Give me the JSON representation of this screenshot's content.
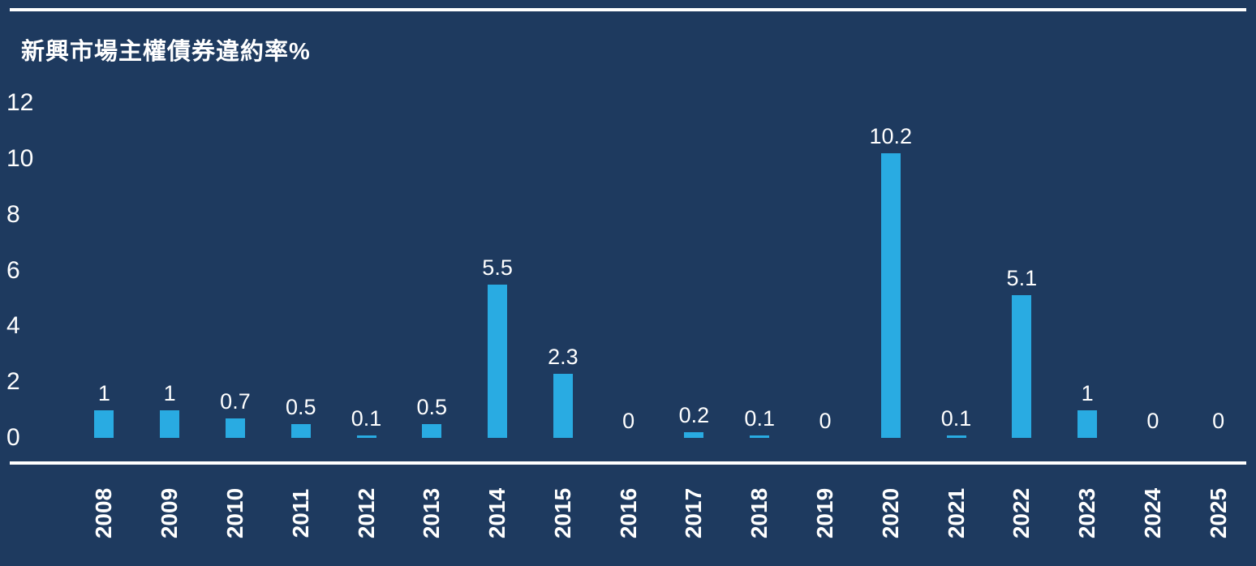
{
  "page": {
    "background_color": "#1e3a5f",
    "text_color": "#ffffff",
    "rule_color": "#ffffff"
  },
  "chart_data": {
    "type": "bar",
    "title": "新興市場主權債券違約率%",
    "categories": [
      "2008",
      "2009",
      "2010",
      "2011",
      "2012",
      "2013",
      "2014",
      "2015",
      "2016",
      "2017",
      "2018",
      "2019",
      "2020",
      "2021",
      "2022",
      "2023",
      "2024",
      "2025"
    ],
    "values": [
      1,
      1,
      0.7,
      0.5,
      0.1,
      0.5,
      5.5,
      2.3,
      0,
      0.2,
      0.1,
      0,
      10.2,
      0.1,
      5.1,
      1,
      0,
      0
    ],
    "labels": [
      "1",
      "1",
      "0.7",
      "0.5",
      "0.1",
      "0.5",
      "5.5",
      "2.3",
      "0",
      "0.2",
      "0.1",
      "0",
      "10.2",
      "0.1",
      "5.1",
      "1",
      "0",
      "0"
    ],
    "xlabel": "",
    "ylabel": "",
    "ylim": [
      0,
      12
    ],
    "yticks": [
      12,
      10,
      8,
      6,
      4,
      2,
      0
    ],
    "bar_color": "#29abe2",
    "grid": false,
    "legend_position": "none"
  }
}
